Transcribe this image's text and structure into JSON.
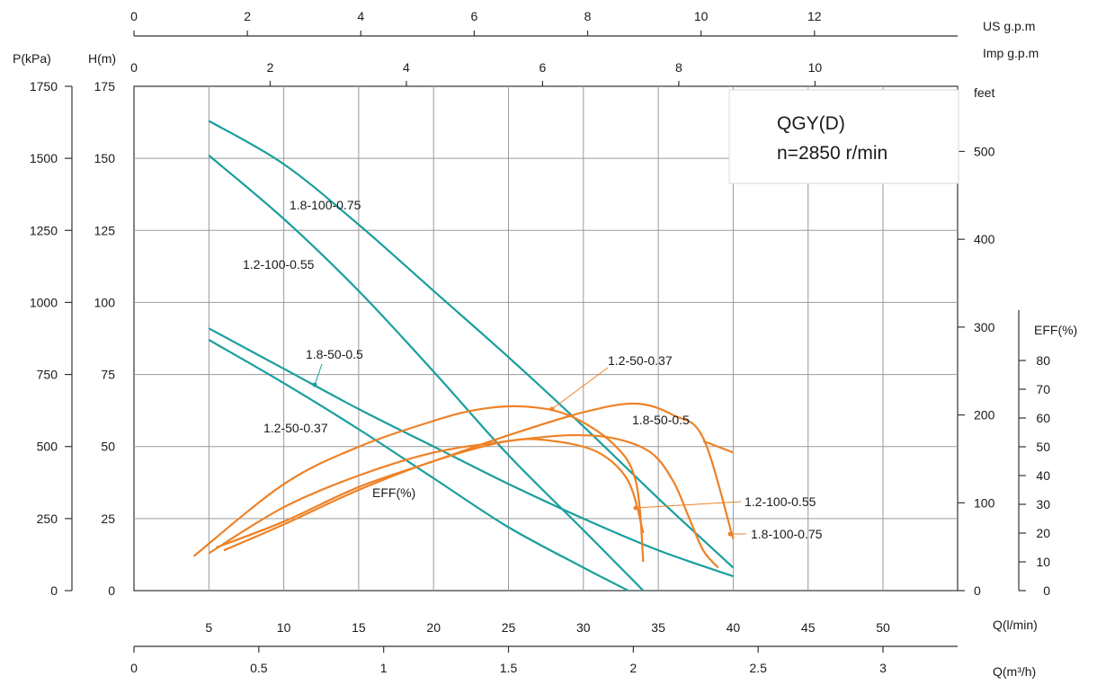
{
  "chart_data": {
    "type": "line",
    "title": "QGY(D)",
    "subtitle": "n=2850 r/min",
    "axes": {
      "q_lmin": {
        "label": "Q(l/min)",
        "range": [
          0,
          55
        ],
        "ticks": [
          5,
          10,
          15,
          20,
          25,
          30,
          35,
          40,
          45,
          50
        ]
      },
      "q_m3h": {
        "label": "Q(m³/h)",
        "range": [
          0,
          3.3
        ],
        "ticks": [
          0,
          0.5,
          1,
          1.5,
          2,
          2.5,
          3
        ]
      },
      "us_gpm": {
        "label": "US  g.p.m",
        "range": [
          0,
          14.5
        ],
        "ticks": [
          0,
          2,
          4,
          6,
          8,
          10,
          12
        ]
      },
      "imp_gpm": {
        "label": "Imp  g.p.m",
        "range": [
          0,
          12.1
        ],
        "ticks": [
          0,
          2,
          4,
          6,
          8,
          10
        ]
      },
      "head_m": {
        "label": "H(m)",
        "range": [
          0,
          175
        ],
        "ticks": [
          0,
          25,
          50,
          75,
          100,
          125,
          150,
          175
        ]
      },
      "pressure_kpa": {
        "label": "P(kPa)",
        "range": [
          0,
          1750
        ],
        "ticks": [
          0,
          250,
          500,
          750,
          1000,
          1250,
          1500,
          1750
        ]
      },
      "head_ft": {
        "label": "feet",
        "range": [
          0,
          574
        ],
        "ticks": [
          0,
          100,
          200,
          300,
          400,
          500
        ]
      },
      "eff_pct": {
        "label": "EFF(%)",
        "range": [
          0,
          80
        ],
        "ticks": [
          0,
          10,
          20,
          30,
          40,
          50,
          60,
          70,
          80
        ]
      }
    },
    "grid": true,
    "head_series": [
      {
        "name": "1.8-100-0.75",
        "color": "#1a9e9e",
        "points": [
          [
            5,
            163
          ],
          [
            10,
            148
          ],
          [
            15,
            127
          ],
          [
            20,
            104
          ],
          [
            25,
            81
          ],
          [
            30,
            57
          ],
          [
            35,
            32
          ],
          [
            40,
            8
          ]
        ]
      },
      {
        "name": "1.2-100-0.55",
        "color": "#1a9e9e",
        "points": [
          [
            5,
            151
          ],
          [
            10,
            129
          ],
          [
            15,
            104
          ],
          [
            20,
            76
          ],
          [
            25,
            47
          ],
          [
            30,
            21
          ],
          [
            34,
            0
          ]
        ]
      },
      {
        "name": "1.8-50-0.5",
        "color": "#1a9e9e",
        "points": [
          [
            5,
            91
          ],
          [
            10,
            77
          ],
          [
            15,
            63
          ],
          [
            20,
            50
          ],
          [
            25,
            37
          ],
          [
            30,
            25
          ],
          [
            35,
            14
          ],
          [
            40,
            5
          ]
        ]
      },
      {
        "name": "1.2-50-0.37",
        "color": "#1a9e9e",
        "points": [
          [
            5,
            87
          ],
          [
            10,
            72
          ],
          [
            15,
            56
          ],
          [
            20,
            39
          ],
          [
            25,
            22
          ],
          [
            30,
            8
          ],
          [
            33,
            0
          ]
        ]
      }
    ],
    "efficiency_label": "EFF(%)",
    "efficiency_series": [
      {
        "name": "1.2-50-0.37",
        "color": "#ee8126",
        "points": [
          [
            4,
            12
          ],
          [
            10,
            37
          ],
          [
            15,
            50
          ],
          [
            20,
            59
          ],
          [
            23,
            63
          ],
          [
            26,
            64
          ],
          [
            29,
            61
          ],
          [
            32,
            51
          ],
          [
            33.5,
            38
          ],
          [
            34,
            10
          ]
        ]
      },
      {
        "name": "1.8-50-0.5",
        "color": "#ee8126",
        "points": [
          [
            5,
            13
          ],
          [
            10,
            29
          ],
          [
            15,
            40
          ],
          [
            20,
            48
          ],
          [
            25,
            52
          ],
          [
            29,
            54
          ],
          [
            32,
            53
          ],
          [
            34.5,
            48
          ],
          [
            36,
            38
          ],
          [
            37,
            26
          ],
          [
            38,
            14
          ],
          [
            39,
            8
          ],
          [
            40,
            48
          ]
        ]
      },
      {
        "name": "1.2-100-0.55",
        "color": "#ee8126",
        "points": [
          [
            6,
            14
          ],
          [
            10,
            23
          ],
          [
            15,
            35
          ],
          [
            20,
            45
          ],
          [
            25,
            52
          ],
          [
            28,
            52
          ],
          [
            31,
            48
          ],
          [
            33,
            38
          ],
          [
            34,
            20
          ]
        ]
      },
      {
        "name": "1.8-100-0.75",
        "color": "#ee8126",
        "points": [
          [
            5.5,
            15
          ],
          [
            10,
            24
          ],
          [
            15,
            36
          ],
          [
            20,
            45
          ],
          [
            25,
            54
          ],
          [
            30,
            62
          ],
          [
            33.5,
            65
          ],
          [
            36,
            61
          ],
          [
            38,
            53
          ],
          [
            40,
            18
          ]
        ]
      }
    ],
    "labels": [
      "1.8-100-0.75",
      "1.2-100-0.55",
      "1.8-50-0.5",
      "1.2-50-0.37",
      "1.2-50-0.37",
      "1.8-50-0.5",
      "1.2-100-0.55",
      "1.8-100-0.75",
      "EFF(%)"
    ]
  }
}
